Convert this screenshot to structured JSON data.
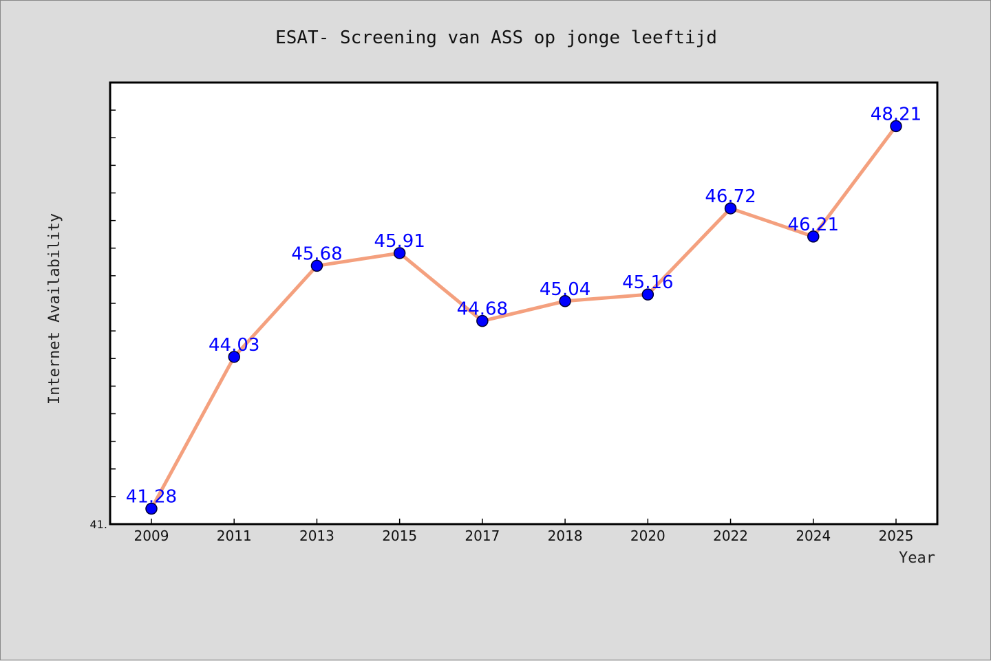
{
  "chart_data": {
    "type": "line",
    "title": "ESAT- Screening van ASS op jonge leeftijd",
    "xlabel": "Year",
    "ylabel": "Internet Availability",
    "categories": [
      "2009",
      "2011",
      "2013",
      "2015",
      "2017",
      "2018",
      "2020",
      "2022",
      "2024",
      "2025"
    ],
    "series": [
      {
        "values": [
          41.28,
          44.03,
          45.68,
          45.91,
          44.68,
          45.04,
          45.16,
          46.72,
          46.21,
          48.21
        ],
        "data_labels": [
          "41.28",
          "44.03",
          "45.68",
          "45.91",
          "44.68",
          "45.04",
          "45.16",
          "46.72",
          "46.21",
          "48.21"
        ]
      }
    ],
    "ylim": [
      41,
      49
    ],
    "y_tick_labels": [
      "41."
    ],
    "grid": false,
    "legend": "none",
    "line_color": "#f4a07e",
    "marker_color": "#0000ff",
    "label_color": "#0000ff"
  }
}
